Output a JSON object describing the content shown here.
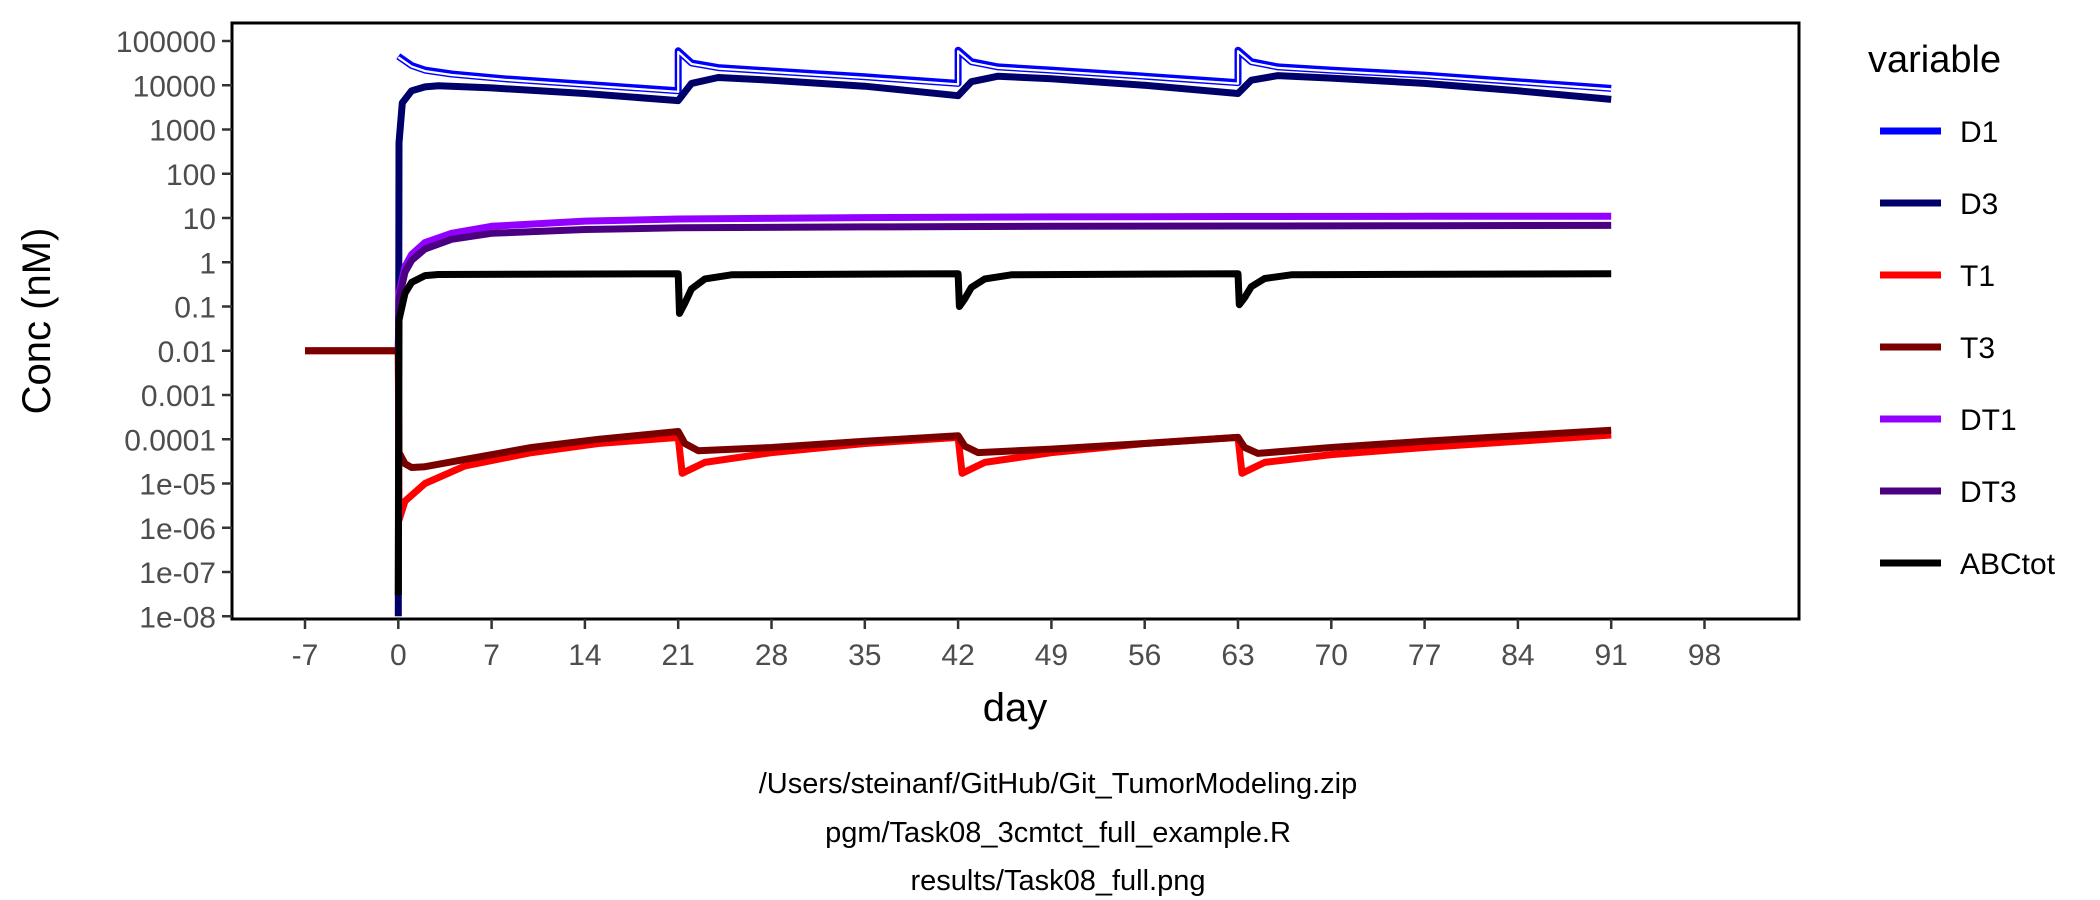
{
  "chart_data": {
    "type": "line",
    "xlabel": "day",
    "ylabel": "Conc (nM)",
    "y_scale": "log10",
    "ylim": [
      1e-08,
      100000
    ],
    "xlim": [
      -7,
      98
    ],
    "x_ticks": [
      -7,
      0,
      7,
      14,
      21,
      28,
      35,
      42,
      49,
      56,
      63,
      70,
      77,
      84,
      91,
      98
    ],
    "y_ticks": [
      {
        "value": 1e-08,
        "label": "1e-08"
      },
      {
        "value": 1e-07,
        "label": "1e-07"
      },
      {
        "value": 1e-06,
        "label": "1e-06"
      },
      {
        "value": 1e-05,
        "label": "1e-05"
      },
      {
        "value": 0.0001,
        "label": "0.0001"
      },
      {
        "value": 0.001,
        "label": "0.001"
      },
      {
        "value": 0.01,
        "label": "0.01"
      },
      {
        "value": 0.1,
        "label": "0.1"
      },
      {
        "value": 1,
        "label": "1"
      },
      {
        "value": 10,
        "label": "10"
      },
      {
        "value": 100,
        "label": "100"
      },
      {
        "value": 1000,
        "label": "1000"
      },
      {
        "value": 10000,
        "label": "10000"
      },
      {
        "value": 100000,
        "label": "100000"
      }
    ],
    "legend_title": "variable",
    "legend_position": "right",
    "grid": false,
    "series": [
      {
        "name": "D1",
        "color": "#0000ff",
        "points": [
          [
            0,
            45000
          ],
          [
            1,
            28000
          ],
          [
            2,
            22000
          ],
          [
            4,
            18000
          ],
          [
            8,
            14000
          ],
          [
            14,
            10500
          ],
          [
            21,
            7500
          ],
          [
            21,
            60000
          ],
          [
            22,
            32000
          ],
          [
            24,
            25000
          ],
          [
            28,
            21000
          ],
          [
            35,
            15500
          ],
          [
            42,
            11000
          ],
          [
            42,
            62000
          ],
          [
            43,
            34000
          ],
          [
            45,
            26000
          ],
          [
            49,
            22000
          ],
          [
            56,
            16000
          ],
          [
            63,
            11500
          ],
          [
            63,
            62000
          ],
          [
            64,
            34000
          ],
          [
            66,
            26000
          ],
          [
            70,
            22000
          ],
          [
            77,
            17000
          ],
          [
            84,
            12000
          ],
          [
            91,
            8500
          ]
        ]
      },
      {
        "name": "D3",
        "color": "#00006b",
        "points": [
          [
            0,
            1e-08
          ],
          [
            0.05,
            500
          ],
          [
            0.3,
            4000
          ],
          [
            1,
            7500
          ],
          [
            2,
            9200
          ],
          [
            3,
            9700
          ],
          [
            7,
            8700
          ],
          [
            14,
            6500
          ],
          [
            21,
            4500
          ],
          [
            22,
            11000
          ],
          [
            24,
            15000
          ],
          [
            28,
            13000
          ],
          [
            35,
            9500
          ],
          [
            42,
            5800
          ],
          [
            43,
            12000
          ],
          [
            45,
            16000
          ],
          [
            49,
            14000
          ],
          [
            56,
            10000
          ],
          [
            63,
            6500
          ],
          [
            64,
            13000
          ],
          [
            66,
            16500
          ],
          [
            70,
            14500
          ],
          [
            77,
            11000
          ],
          [
            84,
            7500
          ],
          [
            91,
            4800
          ]
        ]
      },
      {
        "name": "T1",
        "color": "#ff0000",
        "points": [
          [
            -7,
            0.01
          ],
          [
            0,
            0.01
          ],
          [
            0.05,
            1.5e-06
          ],
          [
            0.5,
            4e-06
          ],
          [
            2,
            1e-05
          ],
          [
            5,
            2.5e-05
          ],
          [
            10,
            5e-05
          ],
          [
            15,
            8e-05
          ],
          [
            21,
            0.00011
          ],
          [
            21.3,
            1.7e-05
          ],
          [
            23,
            3e-05
          ],
          [
            28,
            5e-05
          ],
          [
            35,
            8e-05
          ],
          [
            42,
            0.00011
          ],
          [
            42.3,
            1.7e-05
          ],
          [
            44,
            3e-05
          ],
          [
            49,
            5e-05
          ],
          [
            56,
            8e-05
          ],
          [
            63,
            0.00011
          ],
          [
            63.3,
            1.7e-05
          ],
          [
            65,
            3e-05
          ],
          [
            70,
            4.5e-05
          ],
          [
            77,
            6.5e-05
          ],
          [
            84,
            9e-05
          ],
          [
            91,
            0.000125
          ]
        ]
      },
      {
        "name": "T3",
        "color": "#7a0000",
        "points": [
          [
            -7,
            0.01
          ],
          [
            0,
            0.01
          ],
          [
            0.05,
            5e-05
          ],
          [
            0.5,
            2.8e-05
          ],
          [
            1,
            2.3e-05
          ],
          [
            2,
            2.4e-05
          ],
          [
            5,
            3.5e-05
          ],
          [
            10,
            6.5e-05
          ],
          [
            15,
            0.0001
          ],
          [
            21,
            0.00015
          ],
          [
            21.5,
            8e-05
          ],
          [
            22.5,
            5.5e-05
          ],
          [
            28,
            6.5e-05
          ],
          [
            35,
            9e-05
          ],
          [
            42,
            0.00012
          ],
          [
            42.5,
            7e-05
          ],
          [
            43.5,
            5e-05
          ],
          [
            49,
            6e-05
          ],
          [
            56,
            8e-05
          ],
          [
            63,
            0.00011
          ],
          [
            63.5,
            6.5e-05
          ],
          [
            64.5,
            4.8e-05
          ],
          [
            70,
            6.5e-05
          ],
          [
            77,
            9e-05
          ],
          [
            84,
            0.00012
          ],
          [
            91,
            0.00016
          ]
        ]
      },
      {
        "name": "DT1",
        "color": "#9400ff",
        "points": [
          [
            0,
            0.01
          ],
          [
            0.05,
            0.2
          ],
          [
            0.5,
            0.8
          ],
          [
            1,
            1.5
          ],
          [
            2,
            2.8
          ],
          [
            4,
            4.5
          ],
          [
            7,
            6.5
          ],
          [
            14,
            8.5
          ],
          [
            21,
            9.5
          ],
          [
            35,
            10.2
          ],
          [
            49,
            10.6
          ],
          [
            63,
            10.8
          ],
          [
            77,
            10.9
          ],
          [
            91,
            11
          ]
        ]
      },
      {
        "name": "DT3",
        "color": "#4b0082",
        "points": [
          [
            0,
            0.01
          ],
          [
            0.05,
            0.15
          ],
          [
            0.5,
            0.6
          ],
          [
            1,
            1.1
          ],
          [
            2,
            2
          ],
          [
            4,
            3.3
          ],
          [
            7,
            4.5
          ],
          [
            14,
            5.5
          ],
          [
            21,
            6
          ],
          [
            35,
            6.3
          ],
          [
            49,
            6.5
          ],
          [
            63,
            6.6
          ],
          [
            77,
            6.7
          ],
          [
            91,
            6.8
          ]
        ]
      },
      {
        "name": "ABCtot",
        "color": "#000000",
        "points": [
          [
            0,
            3e-08
          ],
          [
            0.05,
            0.05
          ],
          [
            0.5,
            0.2
          ],
          [
            1,
            0.35
          ],
          [
            2,
            0.5
          ],
          [
            3,
            0.53
          ],
          [
            21,
            0.55
          ],
          [
            21.1,
            0.07
          ],
          [
            21.5,
            0.12
          ],
          [
            22,
            0.25
          ],
          [
            23,
            0.42
          ],
          [
            25,
            0.52
          ],
          [
            42,
            0.55
          ],
          [
            42.1,
            0.1
          ],
          [
            42.5,
            0.15
          ],
          [
            43,
            0.27
          ],
          [
            44,
            0.42
          ],
          [
            46,
            0.52
          ],
          [
            63,
            0.55
          ],
          [
            63.1,
            0.11
          ],
          [
            63.5,
            0.16
          ],
          [
            64,
            0.28
          ],
          [
            65,
            0.43
          ],
          [
            67,
            0.52
          ],
          [
            91,
            0.55
          ]
        ]
      }
    ]
  },
  "caption": {
    "line1": "/Users/steinanf/GitHub/Git_TumorModeling.zip",
    "line2": "pgm/Task08_3cmtct_full_example.R",
    "line3": "results/Task08_full.png"
  }
}
